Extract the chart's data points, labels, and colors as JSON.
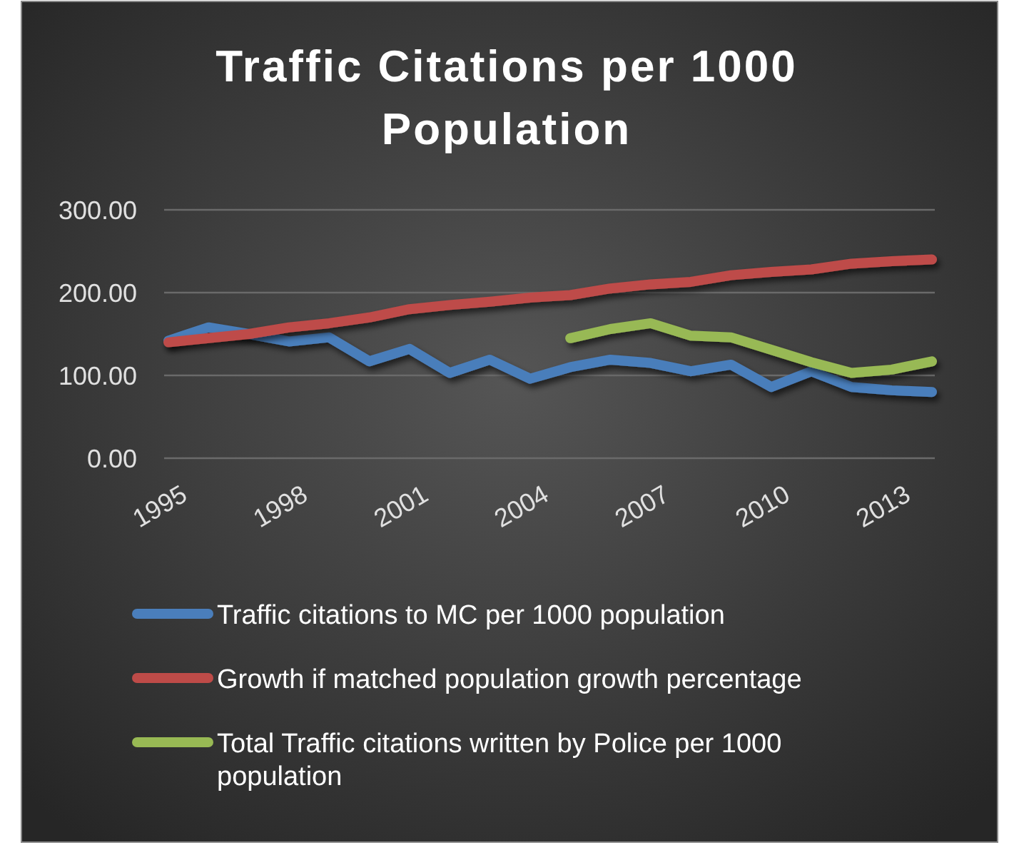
{
  "chart_data": {
    "type": "line",
    "title": "Traffic Citations per 1000 Population",
    "categories": [
      "1995",
      null,
      null,
      "1998",
      null,
      null,
      "2001",
      null,
      null,
      "2004",
      null,
      null,
      "2007",
      null,
      null,
      "2010",
      null,
      null,
      "2013",
      null
    ],
    "series": [
      {
        "name": "Traffic citations to MC  per 1000 population",
        "color": "#4a7ebb",
        "values": [
          142,
          158,
          150,
          141,
          146,
          117,
          132,
          103,
          119,
          96,
          110,
          119,
          115,
          105,
          113,
          86,
          105,
          86,
          82,
          80
        ]
      },
      {
        "name": "Growth if matched population growth percentage",
        "color": "#be4b48",
        "values": [
          140,
          145,
          150,
          158,
          163,
          170,
          180,
          185,
          189,
          194,
          197,
          205,
          210,
          213,
          221,
          225,
          228,
          235,
          238,
          240
        ]
      },
      {
        "name": "Total Traffic citations written by Police per 1000 population",
        "color": "#98b954",
        "values": [
          null,
          null,
          null,
          null,
          null,
          null,
          null,
          null,
          null,
          null,
          145,
          156,
          163,
          148,
          146,
          131,
          116,
          103,
          107,
          117
        ]
      }
    ],
    "ylim": [
      0,
      300
    ],
    "yticks": [
      {
        "value": 0,
        "label": "0.00"
      },
      {
        "value": 100,
        "label": "100.00"
      },
      {
        "value": 200,
        "label": "200.00"
      },
      {
        "value": 300,
        "label": "300.00"
      }
    ],
    "grid": "y",
    "legend": "bottom",
    "marker": "none",
    "line_style": "solid"
  }
}
